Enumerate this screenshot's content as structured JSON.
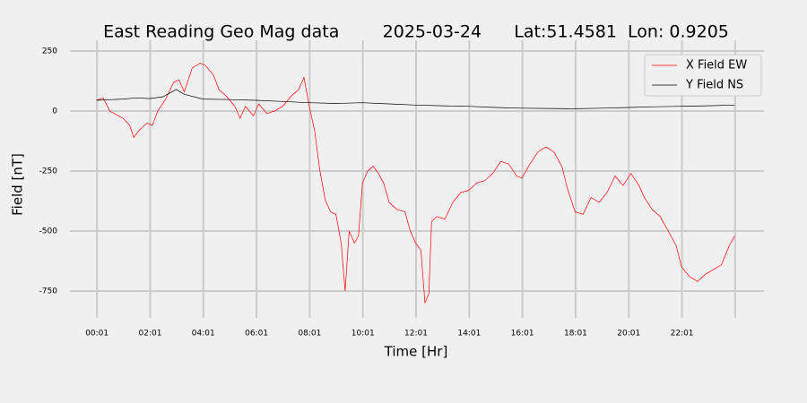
{
  "chart_data": {
    "type": "line",
    "title": "East Reading Geo Mag data        2025-03-24      Lat:51.4581  Lon: 0.9205",
    "xlabel": "Time  [Hr]",
    "ylabel": "Field  [nT]",
    "xlim": [
      -1.0,
      25.1
    ],
    "ylim": [
      -862,
      295
    ],
    "xticks": [
      {
        "value": 0.017,
        "label": "00:01"
      },
      {
        "value": 2.017,
        "label": "02:01"
      },
      {
        "value": 4.017,
        "label": "04:01"
      },
      {
        "value": 6.017,
        "label": "06:01"
      },
      {
        "value": 8.017,
        "label": "08:01"
      },
      {
        "value": 10.017,
        "label": "10:01"
      },
      {
        "value": 12.017,
        "label": "12:01"
      },
      {
        "value": 14.017,
        "label": "14:01"
      },
      {
        "value": 16.017,
        "label": "16:01"
      },
      {
        "value": 18.017,
        "label": "18:01"
      },
      {
        "value": 20.017,
        "label": "20:01"
      },
      {
        "value": 22.017,
        "label": "22:01"
      },
      {
        "value": 24.017,
        "label": null
      }
    ],
    "yticks": [
      250,
      0,
      -250,
      -500,
      -750
    ],
    "grid": true,
    "legend": "upper right",
    "series": [
      {
        "name": "X Field EW",
        "color": "#ff0000",
        "x": [
          0,
          0.25,
          0.5,
          0.75,
          1.0,
          1.25,
          1.4,
          1.6,
          1.9,
          2.1,
          2.3,
          2.6,
          2.9,
          3.1,
          3.3,
          3.6,
          3.9,
          4.1,
          4.4,
          4.6,
          4.9,
          5.2,
          5.4,
          5.6,
          5.9,
          6.1,
          6.4,
          6.7,
          7.0,
          7.3,
          7.6,
          7.8,
          8.0,
          8.2,
          8.4,
          8.6,
          8.8,
          9.0,
          9.2,
          9.35,
          9.5,
          9.7,
          9.85,
          10.0,
          10.2,
          10.4,
          10.6,
          10.8,
          11.0,
          11.3,
          11.6,
          11.8,
          12.0,
          12.2,
          12.35,
          12.5,
          12.6,
          12.8,
          13.1,
          13.4,
          13.7,
          14.0,
          14.3,
          14.6,
          14.9,
          15.2,
          15.5,
          15.8,
          16.0,
          16.3,
          16.6,
          16.9,
          17.2,
          17.5,
          17.7,
          18.0,
          18.3,
          18.6,
          18.9,
          19.2,
          19.5,
          19.8,
          20.1,
          20.4,
          20.6,
          20.9,
          21.2,
          21.5,
          21.8,
          22.0,
          22.3,
          22.6,
          22.9,
          23.2,
          23.5,
          23.8,
          24.0
        ],
        "values": [
          45,
          55,
          0,
          -15,
          -30,
          -60,
          -110,
          -80,
          -50,
          -60,
          0,
          50,
          120,
          130,
          80,
          180,
          200,
          190,
          150,
          90,
          60,
          20,
          -30,
          20,
          -20,
          30,
          -10,
          0,
          20,
          60,
          90,
          140,
          20,
          -80,
          -250,
          -370,
          -420,
          -430,
          -550,
          -750,
          -500,
          -550,
          -520,
          -300,
          -250,
          -230,
          -260,
          -300,
          -380,
          -410,
          -420,
          -500,
          -550,
          -580,
          -800,
          -760,
          -460,
          -440,
          -450,
          -380,
          -340,
          -330,
          -300,
          -290,
          -260,
          -210,
          -220,
          -270,
          -280,
          -220,
          -170,
          -150,
          -170,
          -230,
          -320,
          -420,
          -430,
          -360,
          -380,
          -340,
          -270,
          -310,
          -260,
          -310,
          -360,
          -410,
          -440,
          -500,
          -560,
          -650,
          -690,
          -710,
          -680,
          -660,
          -640,
          -560,
          -520
        ]
      },
      {
        "name": "Y Field NS",
        "color": "#000000",
        "x": [
          0,
          1,
          1.5,
          2,
          2.5,
          3,
          3.3,
          4,
          5,
          6,
          7,
          8,
          9,
          10,
          11,
          12,
          13,
          14,
          15,
          16,
          17,
          18,
          19,
          20,
          21,
          22,
          23,
          24
        ],
        "values": [
          45,
          50,
          55,
          52,
          60,
          90,
          70,
          50,
          48,
          45,
          40,
          35,
          32,
          35,
          30,
          25,
          22,
          20,
          15,
          12,
          11,
          10,
          12,
          15,
          18,
          20,
          22,
          25
        ]
      }
    ]
  }
}
